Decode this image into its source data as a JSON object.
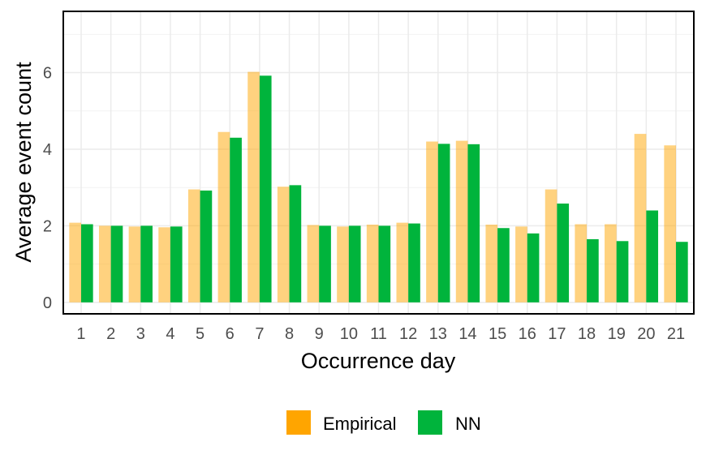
{
  "chart_data": {
    "type": "bar",
    "xlabel": "Occurrence day",
    "ylabel": "Average event count",
    "ylim": [
      -0.3,
      7.6
    ],
    "yticks": [
      0,
      2,
      4,
      6
    ],
    "grid": true,
    "legend_position": "bottom",
    "categories": [
      "1",
      "2",
      "3",
      "4",
      "5",
      "6",
      "7",
      "8",
      "9",
      "10",
      "11",
      "12",
      "13",
      "14",
      "15",
      "16",
      "17",
      "18",
      "19",
      "20",
      "21"
    ],
    "series": [
      {
        "name": "Empirical",
        "color": "#FFA500",
        "opacity": 0.5,
        "values": [
          2.08,
          2.0,
          1.98,
          1.96,
          2.95,
          4.45,
          6.02,
          3.02,
          2.02,
          1.98,
          2.03,
          2.08,
          4.2,
          4.22,
          2.03,
          1.98,
          2.95,
          2.04,
          2.04,
          4.4,
          4.1
        ]
      },
      {
        "name": "NN",
        "color": "#00B43C",
        "opacity": 1,
        "values": [
          2.04,
          2.0,
          2.0,
          1.98,
          2.92,
          4.3,
          5.92,
          3.06,
          2.0,
          2.0,
          2.0,
          2.06,
          4.14,
          4.13,
          1.94,
          1.8,
          2.58,
          1.65,
          1.6,
          2.4,
          1.58
        ]
      }
    ]
  }
}
